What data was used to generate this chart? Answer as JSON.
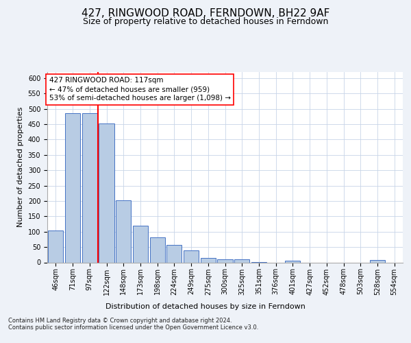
{
  "title": "427, RINGWOOD ROAD, FERNDOWN, BH22 9AF",
  "subtitle": "Size of property relative to detached houses in Ferndown",
  "xlabel": "Distribution of detached houses by size in Ferndown",
  "ylabel": "Number of detached properties",
  "categories": [
    "46sqm",
    "71sqm",
    "97sqm",
    "122sqm",
    "148sqm",
    "173sqm",
    "198sqm",
    "224sqm",
    "249sqm",
    "275sqm",
    "300sqm",
    "325sqm",
    "351sqm",
    "376sqm",
    "401sqm",
    "427sqm",
    "452sqm",
    "478sqm",
    "503sqm",
    "528sqm",
    "554sqm"
  ],
  "values": [
    104,
    487,
    487,
    453,
    202,
    120,
    82,
    56,
    40,
    15,
    9,
    11,
    2,
    0,
    6,
    0,
    0,
    0,
    0,
    7,
    0
  ],
  "bar_color": "#b8cce4",
  "bar_edge_color": "#4472c4",
  "vline_color": "red",
  "ylim": [
    0,
    620
  ],
  "yticks": [
    0,
    50,
    100,
    150,
    200,
    250,
    300,
    350,
    400,
    450,
    500,
    550,
    600
  ],
  "annotation_title": "427 RINGWOOD ROAD: 117sqm",
  "annotation_line1": "← 47% of detached houses are smaller (959)",
  "annotation_line2": "53% of semi-detached houses are larger (1,098) →",
  "annotation_box_color": "red",
  "footer_line1": "Contains HM Land Registry data © Crown copyright and database right 2024.",
  "footer_line2": "Contains public sector information licensed under the Open Government Licence v3.0.",
  "title_fontsize": 11,
  "subtitle_fontsize": 9,
  "axis_label_fontsize": 8,
  "tick_fontsize": 7,
  "footer_fontsize": 6,
  "annotation_fontsize": 7.5,
  "background_color": "#eef2f8",
  "plot_bg_color": "#ffffff"
}
